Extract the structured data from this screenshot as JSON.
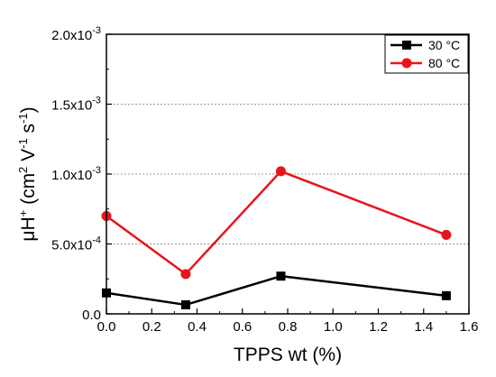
{
  "chart_data": {
    "type": "line",
    "xlabel": "TPPS wt (%)",
    "ylabel": "μH+ (cm2 V-1 s-1)",
    "ylabel_parts": {
      "main": "μH",
      "sup1": "+",
      "open": " (cm",
      "sup2": "2",
      "mid1": " V",
      "sup3": "-1",
      "mid2": " s",
      "sup4": "-1",
      "close": ")"
    },
    "xlim": [
      0.0,
      1.6
    ],
    "ylim": [
      0,
      0.002
    ],
    "x_ticks": [
      0.0,
      0.2,
      0.4,
      0.6,
      0.8,
      1.0,
      1.2,
      1.4,
      1.6
    ],
    "x_tick_labels": [
      "0.0",
      "0.2",
      "0.4",
      "0.6",
      "0.8",
      "1.0",
      "1.2",
      "1.4",
      "1.6"
    ],
    "y_ticks": [
      0,
      0.0005,
      0.001,
      0.0015,
      0.002
    ],
    "y_tick_labels": [
      {
        "base": "0.0",
        "exp": ""
      },
      {
        "base": "5.0x10",
        "exp": "-4"
      },
      {
        "base": "1.0x10",
        "exp": "-3"
      },
      {
        "base": "1.5x10",
        "exp": "-3"
      },
      {
        "base": "2.0x10",
        "exp": "-3"
      }
    ],
    "grid": "horizontal dotted",
    "legend_position": "top-right",
    "series": [
      {
        "name": "30 °C",
        "color": "#000000",
        "marker": "square",
        "x": [
          0.0,
          0.35,
          0.77,
          1.5
        ],
        "y": [
          0.00015,
          6.5e-05,
          0.00027,
          0.00013
        ]
      },
      {
        "name": "80 °C",
        "color": "#e8141b",
        "marker": "circle",
        "x": [
          0.0,
          0.35,
          0.77,
          1.5
        ],
        "y": [
          0.0007,
          0.000285,
          0.00102,
          0.000565
        ]
      }
    ]
  }
}
